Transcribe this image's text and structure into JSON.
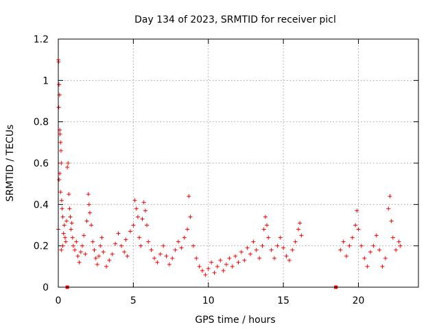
{
  "chart_data": {
    "type": "scatter",
    "title": "Day 134 of 2023, SRMTID for receiver picl",
    "xlabel": "GPS time / hours",
    "ylabel": "SRMTID / TECUs",
    "xlim": [
      0,
      24
    ],
    "ylim": [
      0,
      1.2
    ],
    "x_ticks": [
      0,
      5,
      10,
      15,
      20
    ],
    "y_ticks": [
      0,
      0.2,
      0.4,
      0.6,
      0.8,
      1,
      1.2
    ],
    "x_tick_labels": [
      "0",
      "5",
      "10",
      "15",
      "20"
    ],
    "y_tick_labels": [
      "0",
      "0.2",
      "0.4",
      "0.6",
      "0.8",
      "1",
      "1.2"
    ],
    "grid": true,
    "marker": "plus",
    "color": "#ff0000",
    "series": [
      {
        "name": "SRMTID",
        "points": [
          [
            0.0,
            1.1
          ],
          [
            0.02,
            1.09
          ],
          [
            0.05,
            0.98
          ],
          [
            0.08,
            0.93
          ],
          [
            0.03,
            0.87
          ],
          [
            0.1,
            0.76
          ],
          [
            0.12,
            0.74
          ],
          [
            0.15,
            0.7
          ],
          [
            0.18,
            0.66
          ],
          [
            0.2,
            0.6
          ],
          [
            0.1,
            0.55
          ],
          [
            0.05,
            0.52
          ],
          [
            0.15,
            0.46
          ],
          [
            0.22,
            0.42
          ],
          [
            0.25,
            0.38
          ],
          [
            0.3,
            0.34
          ],
          [
            0.0,
            0.28
          ],
          [
            0.35,
            0.26
          ],
          [
            0.4,
            0.3
          ],
          [
            0.45,
            0.24
          ],
          [
            0.3,
            0.2
          ],
          [
            0.2,
            0.18
          ],
          [
            0.5,
            0.22
          ],
          [
            0.55,
            0.32
          ],
          [
            0.6,
            0.58
          ],
          [
            0.65,
            0.6
          ],
          [
            0.7,
            0.45
          ],
          [
            0.75,
            0.38
          ],
          [
            0.8,
            0.34
          ],
          [
            0.85,
            0.28
          ],
          [
            0.9,
            0.31
          ],
          [
            0.95,
            0.24
          ],
          [
            1.0,
            0.2
          ],
          [
            1.1,
            0.18
          ],
          [
            1.2,
            0.22
          ],
          [
            1.3,
            0.15
          ],
          [
            1.4,
            0.12
          ],
          [
            1.5,
            0.17
          ],
          [
            1.6,
            0.2
          ],
          [
            1.7,
            0.25
          ],
          [
            1.8,
            0.16
          ],
          [
            1.9,
            0.32
          ],
          [
            2.0,
            0.45
          ],
          [
            2.05,
            0.4
          ],
          [
            2.1,
            0.36
          ],
          [
            2.2,
            0.3
          ],
          [
            2.3,
            0.22
          ],
          [
            2.4,
            0.18
          ],
          [
            2.5,
            0.14
          ],
          [
            2.6,
            0.11
          ],
          [
            2.7,
            0.15
          ],
          [
            2.8,
            0.2
          ],
          [
            2.9,
            0.24
          ],
          [
            3.0,
            0.17
          ],
          [
            3.2,
            0.1
          ],
          [
            3.4,
            0.13
          ],
          [
            3.6,
            0.16
          ],
          [
            3.8,
            0.21
          ],
          [
            4.0,
            0.26
          ],
          [
            4.2,
            0.2
          ],
          [
            4.4,
            0.17
          ],
          [
            4.5,
            0.23
          ],
          [
            4.6,
            0.15
          ],
          [
            4.8,
            0.27
          ],
          [
            5.0,
            0.3
          ],
          [
            5.1,
            0.42
          ],
          [
            5.2,
            0.38
          ],
          [
            5.3,
            0.34
          ],
          [
            5.4,
            0.24
          ],
          [
            5.5,
            0.2
          ],
          [
            5.6,
            0.33
          ],
          [
            5.7,
            0.41
          ],
          [
            5.8,
            0.37
          ],
          [
            5.9,
            0.3
          ],
          [
            6.0,
            0.22
          ],
          [
            6.2,
            0.18
          ],
          [
            6.4,
            0.14
          ],
          [
            6.6,
            0.12
          ],
          [
            6.8,
            0.16
          ],
          [
            7.0,
            0.2
          ],
          [
            7.2,
            0.15
          ],
          [
            7.4,
            0.11
          ],
          [
            7.6,
            0.14
          ],
          [
            7.8,
            0.18
          ],
          [
            8.0,
            0.22
          ],
          [
            8.2,
            0.19
          ],
          [
            8.4,
            0.24
          ],
          [
            8.6,
            0.28
          ],
          [
            8.7,
            0.44
          ],
          [
            8.8,
            0.34
          ],
          [
            9.0,
            0.2
          ],
          [
            9.2,
            0.14
          ],
          [
            9.4,
            0.1
          ],
          [
            9.6,
            0.08
          ],
          [
            9.8,
            0.06
          ],
          [
            10.0,
            0.09
          ],
          [
            10.2,
            0.12
          ],
          [
            10.4,
            0.07
          ],
          [
            10.6,
            0.1
          ],
          [
            10.8,
            0.13
          ],
          [
            11.0,
            0.08
          ],
          [
            11.2,
            0.11
          ],
          [
            11.4,
            0.14
          ],
          [
            11.6,
            0.1
          ],
          [
            11.8,
            0.15
          ],
          [
            12.0,
            0.12
          ],
          [
            12.2,
            0.17
          ],
          [
            12.4,
            0.13
          ],
          [
            12.6,
            0.19
          ],
          [
            12.8,
            0.16
          ],
          [
            13.0,
            0.22
          ],
          [
            13.2,
            0.18
          ],
          [
            13.4,
            0.14
          ],
          [
            13.6,
            0.2
          ],
          [
            13.7,
            0.28
          ],
          [
            13.8,
            0.34
          ],
          [
            13.9,
            0.3
          ],
          [
            14.0,
            0.24
          ],
          [
            14.2,
            0.18
          ],
          [
            14.4,
            0.14
          ],
          [
            14.6,
            0.2
          ],
          [
            14.8,
            0.24
          ],
          [
            15.0,
            0.19
          ],
          [
            15.2,
            0.15
          ],
          [
            15.4,
            0.13
          ],
          [
            15.6,
            0.18
          ],
          [
            15.8,
            0.22
          ],
          [
            16.0,
            0.28
          ],
          [
            16.1,
            0.31
          ],
          [
            16.2,
            0.25
          ],
          [
            0.6,
            0.0
          ],
          [
            18.5,
            0.0
          ],
          [
            18.8,
            0.18
          ],
          [
            19.0,
            0.22
          ],
          [
            19.2,
            0.15
          ],
          [
            19.4,
            0.2
          ],
          [
            19.6,
            0.24
          ],
          [
            19.8,
            0.3
          ],
          [
            19.9,
            0.37
          ],
          [
            20.0,
            0.28
          ],
          [
            20.2,
            0.2
          ],
          [
            20.4,
            0.14
          ],
          [
            20.6,
            0.1
          ],
          [
            20.8,
            0.17
          ],
          [
            21.0,
            0.2
          ],
          [
            21.2,
            0.25
          ],
          [
            21.4,
            0.18
          ],
          [
            21.6,
            0.1
          ],
          [
            21.8,
            0.14
          ],
          [
            22.0,
            0.38
          ],
          [
            22.1,
            0.44
          ],
          [
            22.2,
            0.32
          ],
          [
            22.3,
            0.24
          ],
          [
            22.5,
            0.18
          ],
          [
            22.7,
            0.22
          ],
          [
            22.8,
            0.2
          ]
        ]
      }
    ]
  }
}
